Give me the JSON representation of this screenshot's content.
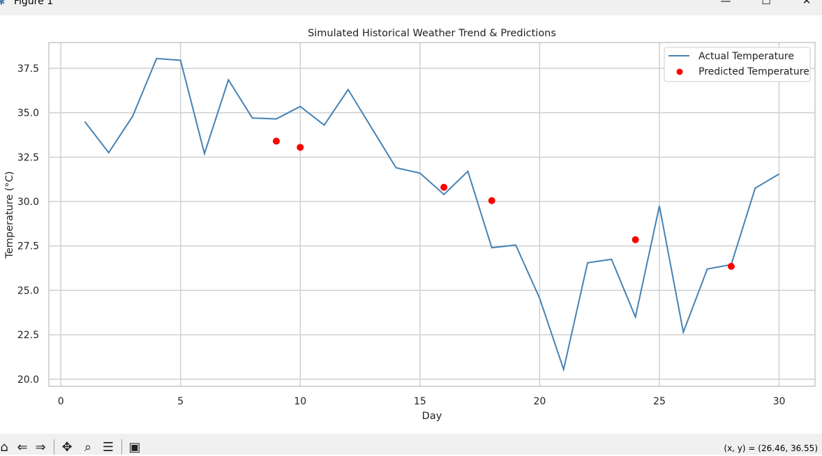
{
  "window": {
    "title": "Figure 1",
    "minimize_glyph": "—",
    "maximize_glyph": "☐",
    "close_glyph": "✕",
    "app_icon": "matplotlib-icon"
  },
  "toolbar": {
    "home_icon": "home-icon",
    "back_icon": "back-icon",
    "forward_icon": "forward-icon",
    "pan_icon": "pan-icon",
    "zoom_icon": "zoom-icon",
    "configure_icon": "configure-subplots-icon",
    "save_icon": "save-icon",
    "coords_text": "(x, y) = (26.46, 36.55)"
  },
  "chart_data": {
    "type": "line",
    "title": "Simulated Historical Weather Trend & Predictions",
    "xlabel": "Day",
    "ylabel": "Temperature (°C)",
    "xlim": [
      -0.5,
      31.5
    ],
    "ylim": [
      19.6,
      38.95
    ],
    "xticks": [
      0,
      5,
      10,
      15,
      20,
      25,
      30
    ],
    "xtick_labels": [
      "0",
      "5",
      "10",
      "15",
      "20",
      "25",
      "30"
    ],
    "yticks": [
      20.0,
      22.5,
      25.0,
      27.5,
      30.0,
      32.5,
      35.0,
      37.5
    ],
    "ytick_labels": [
      "20.0",
      "22.5",
      "25.0",
      "27.5",
      "30.0",
      "32.5",
      "35.0",
      "37.5"
    ],
    "grid": true,
    "legend_position": "top-right",
    "series": [
      {
        "name": "Actual Temperature",
        "kind": "line",
        "color": "#4682b4",
        "x": [
          1,
          2,
          3,
          4,
          5,
          6,
          7,
          8,
          9,
          10,
          11,
          12,
          13,
          14,
          15,
          16,
          17,
          18,
          19,
          20,
          21,
          22,
          23,
          24,
          25,
          26,
          27,
          28,
          29,
          30
        ],
        "y": [
          34.5,
          32.75,
          34.8,
          38.05,
          37.95,
          32.7,
          36.85,
          34.7,
          34.65,
          35.35,
          34.3,
          36.3,
          34.1,
          31.9,
          31.6,
          30.4,
          31.7,
          27.4,
          27.55,
          24.55,
          20.55,
          26.55,
          26.75,
          23.5,
          29.75,
          22.65,
          26.2,
          26.45,
          30.75,
          31.55
        ]
      },
      {
        "name": "Predicted Temperature",
        "kind": "scatter",
        "color": "#ff0000",
        "x": [
          9,
          10,
          16,
          18,
          24,
          28
        ],
        "y": [
          33.4,
          33.05,
          30.8,
          30.05,
          27.85,
          26.35
        ]
      }
    ]
  }
}
